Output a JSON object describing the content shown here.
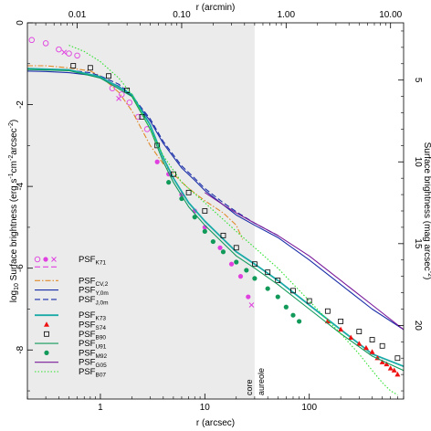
{
  "chart_data": {
    "type": "line",
    "xlabel": "r (arcsec)",
    "x2label": "r (arcmin)",
    "ylabel": "log10 Surface brightness (erg s-1 cm-2 arcsec-2)",
    "ylabel_parts": {
      "pre": "log",
      "sub": "10",
      "main": " Surface brightness (erg s",
      "e1": "-1",
      "mid": "cm",
      "e2": "-2",
      "mid2": "arcsec",
      "e3": "-2",
      "end": ")"
    },
    "y2label": "Surface brightness (mag arcsec-2)",
    "y2label_parts": {
      "main": "Surface brightness (mag arcsec",
      "e": "-2",
      "end": ")"
    },
    "x_scale": "log",
    "xlim": [
      0.2,
      800
    ],
    "ylim": [
      -9.2,
      0
    ],
    "x_ticks": [
      {
        "v": 1,
        "label": "1"
      },
      {
        "v": 10,
        "label": "10"
      },
      {
        "v": 100,
        "label": "100"
      }
    ],
    "x2_ticks": [
      {
        "v": 0.01,
        "label": "0.01"
      },
      {
        "v": 0.1,
        "label": "0.10"
      },
      {
        "v": 1,
        "label": "1.00"
      },
      {
        "v": 10,
        "label": "10.00"
      }
    ],
    "y_ticks": [
      {
        "v": 0,
        "label": "0"
      },
      {
        "v": -2,
        "label": "-2"
      },
      {
        "v": -4,
        "label": "-4"
      },
      {
        "v": -6,
        "label": "-6"
      },
      {
        "v": -8,
        "label": "-8"
      }
    ],
    "y2_ticks": [
      {
        "v": 5,
        "label": "5"
      },
      {
        "v": 10,
        "label": "10"
      },
      {
        "v": 15,
        "label": "15"
      },
      {
        "v": 20,
        "label": "20"
      }
    ],
    "y2_map": {
      "mag_at_top": 1.5,
      "mag_per_log": 2.5
    },
    "shaded_region": {
      "x_from": 0.2,
      "x_to": 30,
      "color": "#ebebeb"
    },
    "annotations": [
      {
        "text": "core",
        "x": 30
      },
      {
        "text": "aureole",
        "x": 30
      }
    ],
    "legend_position": "lower-left",
    "series": [
      {
        "name": "PSF",
        "sub": "K71",
        "color": "#e040e0",
        "style": "marker-circle-open",
        "x": [
          0.22,
          0.3,
          0.4,
          0.5,
          0.6,
          1.3,
          1.6,
          1.9,
          2.3,
          2.8
        ],
        "y": [
          -0.42,
          -0.5,
          -0.65,
          -0.75,
          -0.8,
          -1.6,
          -1.75,
          -1.95,
          -2.3,
          -2.6
        ]
      },
      {
        "name": "",
        "sub": "",
        "color": "#e040e0",
        "style": "marker-circle-filled",
        "x": [
          3.5,
          4.5,
          6,
          8,
          10,
          14,
          18,
          22,
          26
        ],
        "y": [
          -3.4,
          -3.7,
          -4.2,
          -4.6,
          -5.0,
          -5.5,
          -5.9,
          -6.2,
          -6.7
        ]
      },
      {
        "name": "",
        "sub": "",
        "color": "#e040e0",
        "style": "marker-x",
        "x": [
          0.45,
          1.5,
          28
        ],
        "y": [
          -0.72,
          -1.85,
          -6.9
        ]
      },
      {
        "name": "PSF",
        "sub": "CV,2",
        "color": "#e08a2a",
        "style": "dashdot",
        "x": [
          0.2,
          0.3,
          0.5,
          0.8,
          1.0,
          1.5,
          2,
          3,
          4,
          5,
          7,
          10,
          15,
          20,
          23
        ],
        "y": [
          -1.05,
          -1.05,
          -1.1,
          -1.18,
          -1.3,
          -1.7,
          -2.15,
          -3.0,
          -3.45,
          -3.7,
          -4.05,
          -4.35,
          -4.65,
          -4.95,
          -5.3
        ]
      },
      {
        "name": "PSF",
        "sub": "Y,0m",
        "color": "#1a2ea8",
        "style": "solid",
        "x": [
          0.2,
          0.3,
          0.5,
          0.8,
          1.0,
          1.5,
          2,
          3,
          4,
          6,
          8,
          10,
          15,
          20,
          30,
          50,
          100,
          200,
          400,
          800
        ],
        "y": [
          -1.18,
          -1.19,
          -1.22,
          -1.28,
          -1.35,
          -1.55,
          -1.8,
          -2.4,
          -2.95,
          -3.55,
          -3.85,
          -4.1,
          -4.45,
          -4.7,
          -4.95,
          -5.25,
          -5.8,
          -6.4,
          -7.0,
          -7.5
        ]
      },
      {
        "name": "PSF",
        "sub": "J,0m",
        "color": "#1a2ea8",
        "style": "dashed",
        "x": [
          0.2,
          0.3,
          0.5,
          0.8,
          1.0,
          1.5,
          2,
          3,
          4,
          6,
          8,
          10,
          15,
          20,
          30,
          50
        ],
        "y": [
          -1.12,
          -1.13,
          -1.16,
          -1.22,
          -1.3,
          -1.5,
          -1.78,
          -2.35,
          -2.9,
          -3.5,
          -3.8,
          -4.05,
          -4.4,
          -4.62,
          -4.9,
          -5.2
        ]
      },
      {
        "name": "PSF",
        "sub": "K73",
        "color": "#1aaaa8",
        "style": "solid-thick",
        "x": [
          0.2,
          0.5,
          1.0,
          2,
          3,
          4,
          5,
          7,
          10,
          20,
          30,
          50,
          100,
          200,
          400,
          800
        ],
        "y": [
          -1.12,
          -1.15,
          -1.32,
          -1.75,
          -2.5,
          -3.3,
          -3.8,
          -4.4,
          -4.85,
          -5.6,
          -5.9,
          -6.3,
          -6.9,
          -7.5,
          -8.1,
          -8.4
        ]
      },
      {
        "name": "PSF",
        "sub": "S74",
        "color": "#ee1111",
        "style": "marker-triangle",
        "x": [
          150,
          200,
          250,
          300,
          350,
          400,
          450,
          500,
          550,
          600,
          650,
          700
        ],
        "y": [
          -7.3,
          -7.5,
          -7.7,
          -7.85,
          -7.95,
          -8.05,
          -8.2,
          -8.3,
          -8.35,
          -8.45,
          -8.5,
          -8.6
        ]
      },
      {
        "name": "PSF",
        "sub": "B90",
        "color": "#000000",
        "style": "marker-square-open",
        "x": [
          0.55,
          0.8,
          1.2,
          1.8,
          2.5,
          3.5,
          5,
          7,
          10,
          15,
          20,
          30,
          40,
          50,
          70,
          100,
          150,
          200,
          300,
          400,
          500,
          700
        ],
        "y": [
          -1.05,
          -1.1,
          -1.3,
          -1.65,
          -2.3,
          -3.0,
          -3.7,
          -4.15,
          -4.6,
          -5.2,
          -5.5,
          -5.9,
          -6.1,
          -6.3,
          -6.55,
          -6.8,
          -7.05,
          -7.3,
          -7.55,
          -7.75,
          -7.9,
          -8.2
        ]
      },
      {
        "name": "PSF",
        "sub": "U91",
        "color": "#129a5a",
        "style": "solid",
        "x": [
          0.2,
          0.5,
          1.0,
          2,
          3,
          4,
          5,
          7,
          10,
          20,
          30,
          50,
          100,
          200,
          400,
          800
        ],
        "y": [
          -1.14,
          -1.17,
          -1.35,
          -1.8,
          -2.6,
          -3.4,
          -3.9,
          -4.5,
          -4.95,
          -5.7,
          -6.0,
          -6.4,
          -7.0,
          -7.6,
          -8.15,
          -8.5
        ]
      },
      {
        "name": "PSF",
        "sub": "M92",
        "color": "#129a5a",
        "style": "marker-circle-filled",
        "x": [
          4.5,
          6,
          8,
          10,
          12,
          15,
          20,
          25,
          30,
          40,
          50,
          60,
          70,
          80
        ],
        "y": [
          -3.9,
          -4.3,
          -4.75,
          -5.1,
          -5.35,
          -5.6,
          -5.85,
          -6.05,
          -6.25,
          -6.5,
          -6.7,
          -6.95,
          -7.15,
          -7.3
        ]
      },
      {
        "name": "PSF",
        "sub": "G05",
        "color": "#7a1a9a",
        "style": "solid",
        "x": [
          10,
          15,
          20,
          30,
          50,
          100,
          200,
          400,
          800
        ],
        "y": [
          -4.15,
          -4.45,
          -4.65,
          -4.9,
          -5.2,
          -5.7,
          -6.3,
          -6.9,
          -7.5
        ]
      },
      {
        "name": "PSF",
        "sub": "B07",
        "color": "#2ee02e",
        "style": "dotted",
        "x": [
          0.5,
          0.7,
          1.0,
          1.5,
          2,
          3,
          4,
          6,
          10,
          20,
          50,
          100,
          200,
          300,
          400,
          500,
          600,
          700
        ],
        "y": [
          -0.55,
          -0.7,
          -0.95,
          -1.35,
          -1.75,
          -2.6,
          -3.25,
          -3.9,
          -4.4,
          -5.1,
          -6.0,
          -6.8,
          -7.6,
          -8.1,
          -8.5,
          -8.8,
          -9.0,
          -9.1
        ]
      }
    ]
  }
}
